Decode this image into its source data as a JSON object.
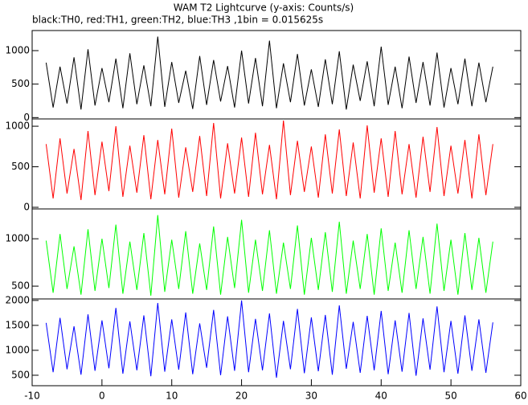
{
  "chart_data": [
    {
      "type": "line",
      "title": "WAM T2 Lightcurve (y-axis: Counts/s)",
      "subtitle": "black:TH0, red:TH1, green:TH2, blue:TH3 ,1bin = 0.015625s",
      "color": "#000000",
      "xlim": [
        -10,
        60
      ],
      "ylim": [
        -20,
        1300
      ],
      "yticks": [
        0,
        500,
        1000
      ],
      "x": [
        -8,
        -7,
        -6,
        -5,
        -4,
        -3,
        -2,
        -1,
        0,
        1,
        2,
        3,
        4,
        5,
        6,
        7,
        8,
        9,
        10,
        11,
        12,
        13,
        14,
        15,
        16,
        17,
        18,
        19,
        20,
        21,
        22,
        23,
        24,
        25,
        26,
        27,
        28,
        29,
        30,
        31,
        32,
        33,
        34,
        35,
        36,
        37,
        38,
        39,
        40,
        41,
        42,
        43,
        44,
        45,
        46,
        47,
        48,
        49,
        50,
        51,
        52,
        53,
        54,
        55,
        56
      ],
      "values": [
        820,
        150,
        760,
        210,
        900,
        120,
        1020,
        180,
        740,
        230,
        880,
        140,
        960,
        200,
        780,
        170,
        1210,
        160,
        830,
        220,
        700,
        130,
        920,
        190,
        860,
        240,
        770,
        150,
        1000,
        210,
        890,
        170,
        1150,
        140,
        810,
        230,
        950,
        180,
        720,
        160,
        870,
        200,
        990,
        120,
        790,
        250,
        840,
        170,
        1060,
        190,
        760,
        140,
        910,
        220,
        830,
        180,
        970,
        150,
        740,
        200,
        880,
        170,
        820,
        230,
        760
      ]
    },
    {
      "type": "line",
      "color": "#ff0000",
      "xlim": [
        -10,
        60
      ],
      "ylim": [
        -20,
        1090
      ],
      "yticks": [
        0,
        500,
        1000
      ],
      "x": [
        -8,
        -7,
        -6,
        -5,
        -4,
        -3,
        -2,
        -1,
        0,
        1,
        2,
        3,
        4,
        5,
        6,
        7,
        8,
        9,
        10,
        11,
        12,
        13,
        14,
        15,
        16,
        17,
        18,
        19,
        20,
        21,
        22,
        23,
        24,
        25,
        26,
        27,
        28,
        29,
        30,
        31,
        32,
        33,
        34,
        35,
        36,
        37,
        38,
        39,
        40,
        41,
        42,
        43,
        44,
        45,
        46,
        47,
        48,
        49,
        50,
        51,
        52,
        53,
        54,
        55,
        56
      ],
      "values": [
        780,
        110,
        850,
        170,
        720,
        90,
        940,
        150,
        810,
        200,
        1000,
        130,
        760,
        180,
        890,
        100,
        830,
        160,
        970,
        120,
        740,
        190,
        880,
        140,
        1040,
        110,
        790,
        170,
        860,
        130,
        920,
        160,
        770,
        100,
        1070,
        150,
        820,
        190,
        750,
        120,
        900,
        170,
        960,
        140,
        800,
        110,
        1010,
        180,
        850,
        130,
        940,
        160,
        780,
        120,
        870,
        190,
        990,
        140,
        760,
        170,
        830,
        110,
        900,
        150,
        780
      ]
    },
    {
      "type": "line",
      "color": "#00ff00",
      "xlim": [
        -10,
        60
      ],
      "ylim": [
        365,
        1315
      ],
      "yticks": [
        500,
        1000
      ],
      "x": [
        -8,
        -7,
        -6,
        -5,
        -4,
        -3,
        -2,
        -1,
        0,
        1,
        2,
        3,
        4,
        5,
        6,
        7,
        8,
        9,
        10,
        11,
        12,
        13,
        14,
        15,
        16,
        17,
        18,
        19,
        20,
        21,
        22,
        23,
        24,
        25,
        26,
        27,
        28,
        29,
        30,
        31,
        32,
        33,
        34,
        35,
        36,
        37,
        38,
        39,
        40,
        41,
        42,
        43,
        44,
        45,
        46,
        47,
        48,
        49,
        50,
        51,
        52,
        53,
        54,
        55,
        56
      ],
      "values": [
        980,
        430,
        1050,
        470,
        920,
        410,
        1100,
        450,
        1000,
        480,
        1150,
        420,
        970,
        460,
        1060,
        400,
        1250,
        440,
        990,
        470,
        1080,
        420,
        950,
        460,
        1130,
        410,
        1020,
        480,
        1200,
        430,
        990,
        450,
        1090,
        420,
        960,
        470,
        1140,
        410,
        1010,
        460,
        1070,
        440,
        1180,
        420,
        980,
        470,
        1050,
        410,
        1110,
        450,
        960,
        430,
        1090,
        470,
        1020,
        420,
        1160,
        450,
        990,
        410,
        1060,
        460,
        1010,
        430,
        970
      ]
    },
    {
      "type": "line",
      "color": "#0000ff",
      "xlim": [
        -10,
        60
      ],
      "ylim": [
        290,
        2030
      ],
      "yticks": [
        500,
        1000,
        1500,
        2000
      ],
      "xticks": [
        -10,
        0,
        10,
        20,
        30,
        40,
        50,
        60
      ],
      "x": [
        -8,
        -7,
        -6,
        -5,
        -4,
        -3,
        -2,
        -1,
        0,
        1,
        2,
        3,
        4,
        5,
        6,
        7,
        8,
        9,
        10,
        11,
        12,
        13,
        14,
        15,
        16,
        17,
        18,
        19,
        20,
        21,
        22,
        23,
        24,
        25,
        26,
        27,
        28,
        29,
        30,
        31,
        32,
        33,
        34,
        35,
        36,
        37,
        38,
        39,
        40,
        41,
        42,
        43,
        44,
        45,
        46,
        47,
        48,
        49,
        50,
        51,
        52,
        53,
        54,
        55,
        56
      ],
      "values": [
        1550,
        560,
        1650,
        620,
        1480,
        510,
        1720,
        590,
        1600,
        640,
        1850,
        530,
        1580,
        600,
        1700,
        480,
        1950,
        570,
        1620,
        610,
        1760,
        520,
        1540,
        650,
        1810,
        500,
        1680,
        590,
        2000,
        560,
        1630,
        600,
        1740,
        450,
        1590,
        620,
        1830,
        540,
        1660,
        580,
        1710,
        510,
        1900,
        630,
        1570,
        550,
        1690,
        600,
        1790,
        520,
        1600,
        570,
        1750,
        490,
        1640,
        610,
        1880,
        560,
        1590,
        530,
        1700,
        590,
        1620,
        550,
        1560
      ]
    }
  ]
}
